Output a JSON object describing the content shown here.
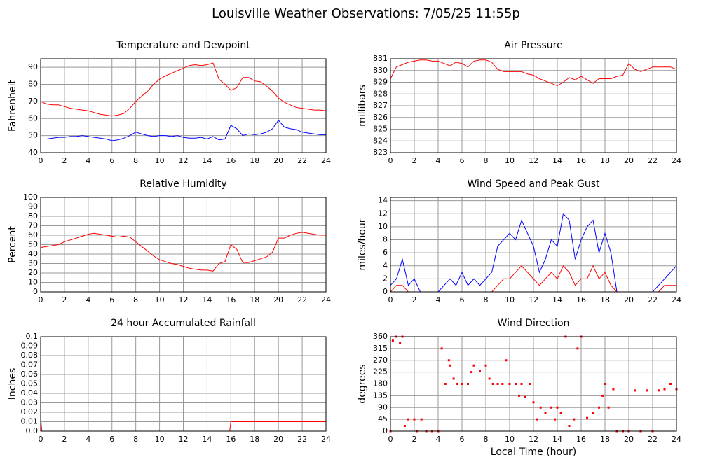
{
  "title": "Louisville Weather Observations: 7/05/25 11:55p",
  "chart_data": [
    {
      "type": "line",
      "title": "Temperature and Dewpoint",
      "ylabel": "Fahrenheit",
      "x": [
        0,
        0.5,
        1,
        1.5,
        2,
        2.5,
        3,
        3.5,
        4,
        4.5,
        5,
        5.5,
        6,
        6.5,
        7,
        7.5,
        8,
        8.5,
        9,
        9.5,
        10,
        10.5,
        11,
        11.5,
        12,
        12.5,
        13,
        13.5,
        14,
        14.5,
        15,
        15.5,
        16,
        16.5,
        17,
        17.5,
        18,
        18.5,
        19,
        19.5,
        20,
        20.5,
        21,
        21.5,
        22,
        22.5,
        23,
        23.5,
        24
      ],
      "series": [
        {
          "color": "#ff0000",
          "values": [
            70,
            68.5,
            68,
            68,
            67,
            66,
            65.5,
            65,
            64.5,
            63.5,
            62.5,
            62,
            61.5,
            62,
            63,
            66,
            70,
            73,
            76,
            80,
            83,
            85,
            86.5,
            88,
            89.5,
            91,
            91.5,
            91,
            91.5,
            92.5,
            83,
            80,
            76.5,
            78,
            84,
            84,
            82,
            81.5,
            79,
            76,
            72,
            69.5,
            68,
            66.5,
            66,
            65.5,
            65,
            65,
            64.5
          ]
        },
        {
          "color": "#0000ff",
          "values": [
            48,
            48,
            48.5,
            49,
            49,
            49.5,
            49.5,
            50,
            49.5,
            49,
            48.5,
            48,
            47,
            47.5,
            48.5,
            50,
            52,
            51,
            50,
            49.5,
            50,
            50,
            49.5,
            50,
            49,
            48.5,
            48.5,
            49,
            48,
            49.5,
            47.5,
            48,
            56,
            54,
            50,
            51,
            50.5,
            51,
            52,
            54,
            59,
            55,
            54,
            53.5,
            52,
            51.5,
            51,
            50.5,
            50.5
          ]
        }
      ],
      "xlim": [
        0,
        24
      ],
      "xticks": [
        0,
        2,
        4,
        6,
        8,
        10,
        12,
        14,
        16,
        18,
        20,
        22,
        24
      ],
      "ylim": [
        40,
        95
      ],
      "yticks": [
        40,
        50,
        60,
        70,
        80,
        90
      ],
      "grid": true
    },
    {
      "type": "line",
      "title": "Air Pressure",
      "ylabel": "millibars",
      "x": [
        0,
        0.5,
        1,
        1.5,
        2,
        2.5,
        3,
        3.5,
        4,
        4.5,
        5,
        5.5,
        6,
        6.5,
        7,
        7.5,
        8,
        8.5,
        9,
        9.5,
        10,
        10.5,
        11,
        11.5,
        12,
        12.5,
        13,
        13.5,
        14,
        14.5,
        15,
        15.5,
        16,
        16.5,
        17,
        17.5,
        18,
        18.5,
        19,
        19.5,
        20,
        20.5,
        21,
        21.5,
        22,
        22.5,
        23,
        23.5,
        24
      ],
      "series": [
        {
          "color": "#ff0000",
          "values": [
            829.3,
            830.3,
            830.5,
            830.7,
            830.8,
            830.9,
            830.9,
            830.8,
            830.8,
            830.6,
            830.4,
            830.7,
            830.6,
            830.3,
            830.8,
            830.9,
            830.9,
            830.7,
            830.1,
            829.9,
            829.9,
            829.9,
            829.9,
            829.7,
            829.6,
            829.3,
            829.1,
            828.9,
            828.7,
            829.0,
            829.4,
            829.2,
            829.5,
            829.2,
            828.9,
            829.3,
            829.3,
            829.3,
            829.5,
            829.6,
            830.6,
            830.1,
            829.9,
            830.1,
            830.3,
            830.3,
            830.3,
            830.3,
            830.1
          ]
        }
      ],
      "xlim": [
        0,
        24
      ],
      "xticks": [
        0,
        2,
        4,
        6,
        8,
        10,
        12,
        14,
        16,
        18,
        20,
        22,
        24
      ],
      "ylim": [
        823,
        831
      ],
      "yticks": [
        823,
        824,
        825,
        826,
        827,
        828,
        829,
        830,
        831
      ],
      "grid": true
    },
    {
      "type": "line",
      "title": "Relative Humidity",
      "ylabel": "Percent",
      "x": [
        0,
        0.5,
        1,
        1.5,
        2,
        2.5,
        3,
        3.5,
        4,
        4.5,
        5,
        5.5,
        6,
        6.5,
        7,
        7.5,
        8,
        8.5,
        9,
        9.5,
        10,
        10.5,
        11,
        11.5,
        12,
        12.5,
        13,
        13.5,
        14,
        14.5,
        15,
        15.5,
        16,
        16.5,
        17,
        17.5,
        18,
        18.5,
        19,
        19.5,
        20,
        20.5,
        21,
        21.5,
        22,
        22.5,
        23,
        23.5,
        24
      ],
      "series": [
        {
          "color": "#ff0000",
          "values": [
            47,
            48,
            49,
            50,
            53,
            55,
            57,
            59,
            61,
            62,
            61,
            60,
            59,
            58,
            59,
            58,
            53,
            48,
            43,
            38,
            34,
            32,
            30,
            29,
            27,
            25,
            24,
            23,
            23,
            22,
            30,
            32,
            50,
            45,
            31,
            31,
            33,
            35,
            37,
            42,
            57,
            57,
            60,
            62,
            63,
            62,
            61,
            60,
            60
          ]
        }
      ],
      "xlim": [
        0,
        24
      ],
      "xticks": [
        0,
        2,
        4,
        6,
        8,
        10,
        12,
        14,
        16,
        18,
        20,
        22,
        24
      ],
      "ylim": [
        0,
        100
      ],
      "yticks": [
        0,
        10,
        20,
        30,
        40,
        50,
        60,
        70,
        80,
        90,
        100
      ],
      "grid": true
    },
    {
      "type": "line",
      "title": "Wind Speed and Peak Gust",
      "ylabel": "miles/hour",
      "x": [
        0,
        0.5,
        1,
        1.5,
        2,
        2.5,
        3,
        3.5,
        4,
        4.5,
        5,
        5.5,
        6,
        6.5,
        7,
        7.5,
        8,
        8.5,
        9,
        9.5,
        10,
        10.5,
        11,
        11.5,
        12,
        12.5,
        13,
        13.5,
        14,
        14.5,
        15,
        15.5,
        16,
        16.5,
        17,
        17.5,
        18,
        18.5,
        19,
        19.5,
        20,
        20.5,
        21,
        21.5,
        22,
        22.5,
        23,
        23.5,
        24
      ],
      "series": [
        {
          "color": "#0000ff",
          "values": [
            1,
            2,
            5,
            1,
            2,
            0,
            0,
            0,
            0,
            1,
            2,
            1,
            3,
            1,
            2,
            1,
            2,
            3,
            7,
            8,
            9,
            8,
            11,
            9,
            7,
            3,
            5,
            8,
            7,
            12,
            11,
            5,
            8,
            10,
            11,
            6,
            9,
            6,
            0,
            0,
            0,
            0,
            0,
            0,
            0,
            1,
            2,
            3,
            4
          ]
        },
        {
          "color": "#ff0000",
          "values": [
            0,
            1,
            1,
            0,
            0,
            0,
            0,
            0,
            0,
            0,
            0,
            0,
            0,
            0,
            0,
            0,
            0,
            0,
            1,
            2,
            2,
            3,
            4,
            3,
            2,
            1,
            2,
            3,
            2,
            4,
            3,
            1,
            2,
            2,
            4,
            2,
            3,
            1,
            0,
            0,
            0,
            0,
            0,
            0,
            0,
            0,
            1,
            1,
            1
          ]
        }
      ],
      "xlim": [
        0,
        24
      ],
      "xticks": [
        0,
        2,
        4,
        6,
        8,
        10,
        12,
        14,
        16,
        18,
        20,
        22,
        24
      ],
      "ylim": [
        0,
        14.5
      ],
      "yticks": [
        0,
        2,
        4,
        6,
        8,
        10,
        12,
        14
      ],
      "grid": true
    },
    {
      "type": "line",
      "title": "24 hour Accumulated Rainfall",
      "ylabel": "Inches",
      "x": [
        0,
        0.1,
        15.9,
        16,
        24
      ],
      "series": [
        {
          "color": "#ff0000",
          "values": [
            0.015,
            0,
            0,
            0.01,
            0.01
          ]
        }
      ],
      "xlim": [
        0,
        24
      ],
      "xticks": [
        0,
        2,
        4,
        6,
        8,
        10,
        12,
        14,
        16,
        18,
        20,
        22,
        24
      ],
      "ylim": [
        0,
        0.1
      ],
      "yticks": [
        {
          "value": 0,
          "label": "0.0"
        },
        0.01,
        0.02,
        0.03,
        0.04,
        0.05,
        0.06,
        0.07,
        0.08,
        0.09,
        0.1
      ],
      "grid": true
    },
    {
      "type": "scatter",
      "title": "Wind Direction",
      "ylabel": "degrees",
      "xlabel": "Local Time (hour)",
      "x": [
        0,
        0.2,
        0.5,
        0.8,
        1,
        1.2,
        1.5,
        2,
        2.2,
        2.6,
        3,
        3.5,
        4,
        4.3,
        4.6,
        4.9,
        5,
        5.3,
        5.6,
        6,
        6.5,
        6.8,
        7,
        7.5,
        8,
        8.3,
        8.6,
        9,
        9.4,
        9.7,
        10,
        10.5,
        10.8,
        11,
        11.3,
        11.7,
        12,
        12.3,
        12.6,
        13,
        13.5,
        13.8,
        14,
        14.3,
        14.7,
        15,
        15.4,
        15.7,
        16,
        16.5,
        17,
        17.5,
        17.8,
        18,
        18.3,
        18.7,
        19,
        19.5,
        20,
        20.5,
        21,
        21.5,
        22,
        22.5,
        23,
        23.5,
        24
      ],
      "color": "#ff0000",
      "values": [
        0,
        345,
        360,
        335,
        360,
        20,
        45,
        45,
        0,
        45,
        0,
        0,
        0,
        315,
        180,
        270,
        250,
        200,
        180,
        180,
        180,
        225,
        250,
        230,
        250,
        200,
        180,
        180,
        180,
        270,
        180,
        180,
        135,
        180,
        130,
        180,
        110,
        45,
        90,
        70,
        90,
        45,
        90,
        70,
        360,
        20,
        45,
        315,
        360,
        50,
        70,
        90,
        135,
        180,
        90,
        160,
        0,
        0,
        0,
        155,
        0,
        155,
        0,
        155,
        160,
        180,
        160
      ],
      "xlim": [
        0,
        24
      ],
      "xticks": [
        0,
        2,
        4,
        6,
        8,
        10,
        12,
        14,
        16,
        18,
        20,
        22,
        24
      ],
      "ylim": [
        0,
        360
      ],
      "yticks": [
        0,
        45,
        90,
        135,
        180,
        225,
        270,
        315,
        360
      ],
      "grid": true
    }
  ]
}
